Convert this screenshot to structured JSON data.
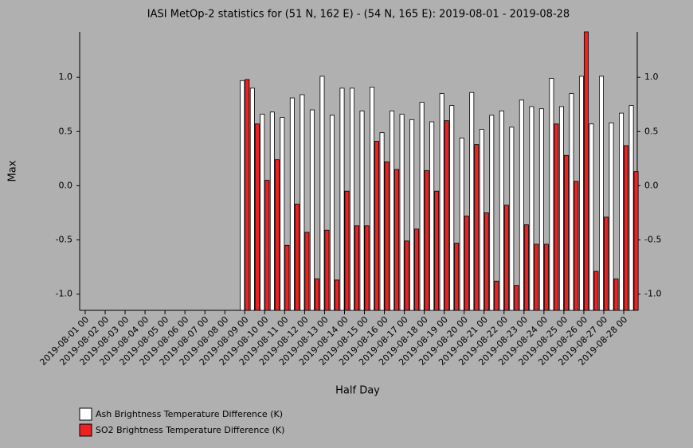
{
  "chart_data": {
    "type": "bar",
    "title": "IASI MetOp-2 statistics for (51 N, 162 E) - (54 N, 165 E): 2019-08-01 - 2019-08-28",
    "x_label": "Half Day",
    "y_label": "Max",
    "categories": [
      "2019-08-01 00",
      null,
      "2019-08-02 00",
      null,
      "2019-08-03 00",
      null,
      "2019-08-04 00",
      null,
      "2019-08-05 00",
      null,
      "2019-08-06 00",
      null,
      "2019-08-07 00",
      null,
      "2019-08-08 00",
      null,
      "2019-08-09 00",
      null,
      "2019-08-10 00",
      null,
      "2019-08-11 00",
      null,
      "2019-08-12 00",
      null,
      "2019-08-13 00",
      null,
      "2019-08-14 00",
      null,
      "2019-08-15 00",
      null,
      "2019-08-16 00",
      null,
      "2019-08-17 00",
      null,
      "2019-08-18 00",
      null,
      "2019-08-19 00",
      null,
      "2019-08-20 00",
      null,
      "2019-08-21 00",
      null,
      "2019-08-22 00",
      null,
      "2019-08-23 00",
      null,
      "2019-08-24 00",
      null,
      "2019-08-25 00",
      null,
      "2019-08-26 00",
      null,
      "2019-08-27 00",
      null,
      "2019-08-28 00",
      null
    ],
    "series": [
      {
        "name": "Ash Brightness Temperature Difference (K)",
        "color": "#ffffff",
        "values": [
          null,
          null,
          null,
          null,
          null,
          null,
          null,
          null,
          null,
          null,
          null,
          null,
          null,
          null,
          null,
          null,
          0.97,
          0.9,
          0.66,
          0.68,
          0.63,
          0.81,
          0.84,
          0.7,
          1.01,
          0.65,
          0.9,
          0.9,
          0.69,
          0.91,
          0.49,
          0.69,
          0.66,
          0.61,
          0.77,
          0.59,
          0.85,
          0.74,
          0.44,
          0.86,
          0.52,
          0.65,
          0.69,
          0.54,
          0.79,
          0.73,
          0.71,
          0.99,
          0.73,
          0.85,
          1.01,
          0.57,
          1.01,
          0.58,
          0.67,
          0.74
        ]
      },
      {
        "name": "SO2 Brightness Temperature Difference (K)",
        "color": "#ee2222",
        "values": [
          null,
          null,
          null,
          null,
          null,
          null,
          null,
          null,
          null,
          null,
          null,
          null,
          null,
          null,
          null,
          null,
          0.98,
          0.57,
          0.05,
          0.24,
          -0.55,
          -0.17,
          -0.43,
          -0.86,
          -0.41,
          -0.87,
          -0.05,
          -0.37,
          -0.37,
          0.41,
          0.22,
          0.15,
          -0.51,
          -0.4,
          0.14,
          -0.05,
          0.6,
          -0.53,
          -0.28,
          0.38,
          -0.25,
          -0.88,
          -0.18,
          -0.92,
          -0.36,
          -0.54,
          -0.54,
          0.57,
          0.28,
          0.04,
          1.42,
          -0.79,
          -0.29,
          -0.86,
          0.37,
          0.13
        ]
      }
    ],
    "ylim": [
      -1.15,
      1.42
    ],
    "yticks": [
      {
        "value": -1,
        "label": "-1.0"
      },
      {
        "value": -0.5,
        "label": "-0.5"
      },
      {
        "value": 0,
        "label": "0.0"
      },
      {
        "value": 0.5,
        "label": "0.5"
      },
      {
        "value": 1,
        "label": "1.0"
      }
    ]
  }
}
